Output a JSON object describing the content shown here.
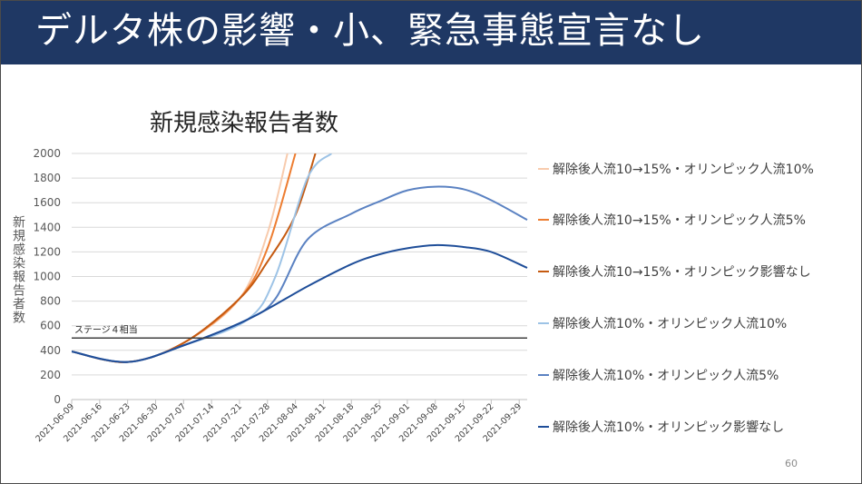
{
  "slide": {
    "title": "デルタ株の影響・小、緊急事態宣言なし",
    "page_number": "60",
    "colors": {
      "header_bg": "#1f3864",
      "header_text": "#ffffff"
    }
  },
  "chart_data": {
    "type": "line",
    "title": "新規感染報告者数",
    "xlabel": "",
    "ylabel": "新規感染報告者数",
    "ylim": [
      0,
      2000
    ],
    "yticks": [
      0,
      200,
      400,
      600,
      800,
      1000,
      1200,
      1400,
      1600,
      1800,
      2000
    ],
    "xticks": [
      "2021-06-09",
      "2021-06-16",
      "2021-06-23",
      "2021-06-30",
      "2021-07-07",
      "2021-07-14",
      "2021-07-21",
      "2021-07-28",
      "2021-08-04",
      "2021-08-11",
      "2021-08-18",
      "2021-08-25",
      "2021-09-01",
      "2021-09-08",
      "2021-09-15",
      "2021-09-22",
      "2021-09-29"
    ],
    "grid": "horizontal",
    "legend_position": "right",
    "reference_line": {
      "label": "ステージ４相当",
      "value": 500
    },
    "series": [
      {
        "name": "解除後人流10→15%・オリンピック人流10%",
        "color": "#f8cbad",
        "points": [
          [
            "2021-06-09",
            390
          ],
          [
            "2021-06-23",
            305
          ],
          [
            "2021-07-07",
            460
          ],
          [
            "2021-07-21",
            820
          ],
          [
            "2021-07-28",
            1350
          ],
          [
            "2021-08-02",
            2000
          ]
        ]
      },
      {
        "name": "解除後人流10→15%・オリンピック人流5%",
        "color": "#ed7d31",
        "points": [
          [
            "2021-06-09",
            390
          ],
          [
            "2021-06-23",
            305
          ],
          [
            "2021-07-07",
            460
          ],
          [
            "2021-07-21",
            820
          ],
          [
            "2021-07-28",
            1230
          ],
          [
            "2021-08-04",
            2000
          ]
        ]
      },
      {
        "name": "解除後人流10→15%・オリンピック影響なし",
        "color": "#c55a11",
        "points": [
          [
            "2021-06-09",
            390
          ],
          [
            "2021-06-23",
            305
          ],
          [
            "2021-07-07",
            460
          ],
          [
            "2021-07-21",
            820
          ],
          [
            "2021-07-28",
            1120
          ],
          [
            "2021-08-04",
            1500
          ],
          [
            "2021-08-09",
            2000
          ]
        ]
      },
      {
        "name": "解除後人流10%・オリンピック人流10%",
        "color": "#9dc3e6",
        "points": [
          [
            "2021-06-09",
            390
          ],
          [
            "2021-06-23",
            305
          ],
          [
            "2021-07-07",
            440
          ],
          [
            "2021-07-23",
            650
          ],
          [
            "2021-07-30",
            1000
          ],
          [
            "2021-08-07",
            1800
          ],
          [
            "2021-08-13",
            2000
          ]
        ]
      },
      {
        "name": "解除後人流10%・オリンピック人流5%",
        "color": "#5b82c2",
        "points": [
          [
            "2021-06-09",
            390
          ],
          [
            "2021-06-23",
            305
          ],
          [
            "2021-07-07",
            440
          ],
          [
            "2021-07-23",
            650
          ],
          [
            "2021-07-30",
            820
          ],
          [
            "2021-08-07",
            1300
          ],
          [
            "2021-08-18",
            1510
          ],
          [
            "2021-08-25",
            1610
          ],
          [
            "2021-09-01",
            1700
          ],
          [
            "2021-09-08",
            1730
          ],
          [
            "2021-09-15",
            1710
          ],
          [
            "2021-09-22",
            1620
          ],
          [
            "2021-10-01",
            1460
          ]
        ]
      },
      {
        "name": "解除後人流10%・オリンピック影響なし",
        "color": "#1f4e99",
        "points": [
          [
            "2021-06-09",
            390
          ],
          [
            "2021-06-23",
            305
          ],
          [
            "2021-07-07",
            440
          ],
          [
            "2021-07-23",
            650
          ],
          [
            "2021-08-07",
            920
          ],
          [
            "2021-08-18",
            1100
          ],
          [
            "2021-08-25",
            1180
          ],
          [
            "2021-09-01",
            1230
          ],
          [
            "2021-09-08",
            1255
          ],
          [
            "2021-09-15",
            1240
          ],
          [
            "2021-09-22",
            1200
          ],
          [
            "2021-10-01",
            1070
          ]
        ]
      }
    ]
  }
}
